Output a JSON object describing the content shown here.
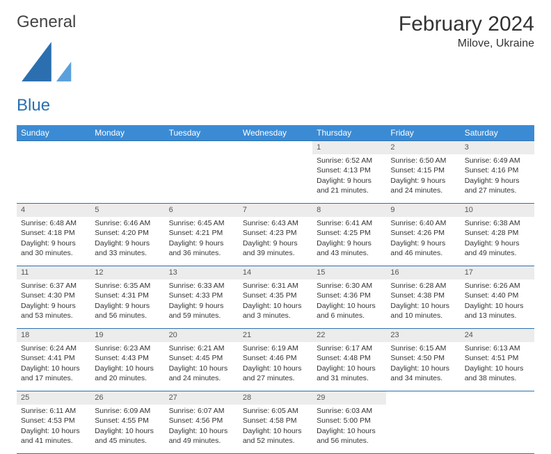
{
  "brand": {
    "part1": "General",
    "part2": "Blue"
  },
  "title": "February 2024",
  "location": "Milove, Ukraine",
  "colors": {
    "header_bg": "#3b8bd4",
    "border": "#2b6fb0",
    "daynum_bg": "#ececec",
    "text": "#333333"
  },
  "weekdays": [
    "Sunday",
    "Monday",
    "Tuesday",
    "Wednesday",
    "Thursday",
    "Friday",
    "Saturday"
  ],
  "weeks": [
    [
      null,
      null,
      null,
      null,
      {
        "n": "1",
        "sr": "Sunrise: 6:52 AM",
        "ss": "Sunset: 4:13 PM",
        "dl1": "Daylight: 9 hours",
        "dl2": "and 21 minutes."
      },
      {
        "n": "2",
        "sr": "Sunrise: 6:50 AM",
        "ss": "Sunset: 4:15 PM",
        "dl1": "Daylight: 9 hours",
        "dl2": "and 24 minutes."
      },
      {
        "n": "3",
        "sr": "Sunrise: 6:49 AM",
        "ss": "Sunset: 4:16 PM",
        "dl1": "Daylight: 9 hours",
        "dl2": "and 27 minutes."
      }
    ],
    [
      {
        "n": "4",
        "sr": "Sunrise: 6:48 AM",
        "ss": "Sunset: 4:18 PM",
        "dl1": "Daylight: 9 hours",
        "dl2": "and 30 minutes."
      },
      {
        "n": "5",
        "sr": "Sunrise: 6:46 AM",
        "ss": "Sunset: 4:20 PM",
        "dl1": "Daylight: 9 hours",
        "dl2": "and 33 minutes."
      },
      {
        "n": "6",
        "sr": "Sunrise: 6:45 AM",
        "ss": "Sunset: 4:21 PM",
        "dl1": "Daylight: 9 hours",
        "dl2": "and 36 minutes."
      },
      {
        "n": "7",
        "sr": "Sunrise: 6:43 AM",
        "ss": "Sunset: 4:23 PM",
        "dl1": "Daylight: 9 hours",
        "dl2": "and 39 minutes."
      },
      {
        "n": "8",
        "sr": "Sunrise: 6:41 AM",
        "ss": "Sunset: 4:25 PM",
        "dl1": "Daylight: 9 hours",
        "dl2": "and 43 minutes."
      },
      {
        "n": "9",
        "sr": "Sunrise: 6:40 AM",
        "ss": "Sunset: 4:26 PM",
        "dl1": "Daylight: 9 hours",
        "dl2": "and 46 minutes."
      },
      {
        "n": "10",
        "sr": "Sunrise: 6:38 AM",
        "ss": "Sunset: 4:28 PM",
        "dl1": "Daylight: 9 hours",
        "dl2": "and 49 minutes."
      }
    ],
    [
      {
        "n": "11",
        "sr": "Sunrise: 6:37 AM",
        "ss": "Sunset: 4:30 PM",
        "dl1": "Daylight: 9 hours",
        "dl2": "and 53 minutes."
      },
      {
        "n": "12",
        "sr": "Sunrise: 6:35 AM",
        "ss": "Sunset: 4:31 PM",
        "dl1": "Daylight: 9 hours",
        "dl2": "and 56 minutes."
      },
      {
        "n": "13",
        "sr": "Sunrise: 6:33 AM",
        "ss": "Sunset: 4:33 PM",
        "dl1": "Daylight: 9 hours",
        "dl2": "and 59 minutes."
      },
      {
        "n": "14",
        "sr": "Sunrise: 6:31 AM",
        "ss": "Sunset: 4:35 PM",
        "dl1": "Daylight: 10 hours",
        "dl2": "and 3 minutes."
      },
      {
        "n": "15",
        "sr": "Sunrise: 6:30 AM",
        "ss": "Sunset: 4:36 PM",
        "dl1": "Daylight: 10 hours",
        "dl2": "and 6 minutes."
      },
      {
        "n": "16",
        "sr": "Sunrise: 6:28 AM",
        "ss": "Sunset: 4:38 PM",
        "dl1": "Daylight: 10 hours",
        "dl2": "and 10 minutes."
      },
      {
        "n": "17",
        "sr": "Sunrise: 6:26 AM",
        "ss": "Sunset: 4:40 PM",
        "dl1": "Daylight: 10 hours",
        "dl2": "and 13 minutes."
      }
    ],
    [
      {
        "n": "18",
        "sr": "Sunrise: 6:24 AM",
        "ss": "Sunset: 4:41 PM",
        "dl1": "Daylight: 10 hours",
        "dl2": "and 17 minutes."
      },
      {
        "n": "19",
        "sr": "Sunrise: 6:23 AM",
        "ss": "Sunset: 4:43 PM",
        "dl1": "Daylight: 10 hours",
        "dl2": "and 20 minutes."
      },
      {
        "n": "20",
        "sr": "Sunrise: 6:21 AM",
        "ss": "Sunset: 4:45 PM",
        "dl1": "Daylight: 10 hours",
        "dl2": "and 24 minutes."
      },
      {
        "n": "21",
        "sr": "Sunrise: 6:19 AM",
        "ss": "Sunset: 4:46 PM",
        "dl1": "Daylight: 10 hours",
        "dl2": "and 27 minutes."
      },
      {
        "n": "22",
        "sr": "Sunrise: 6:17 AM",
        "ss": "Sunset: 4:48 PM",
        "dl1": "Daylight: 10 hours",
        "dl2": "and 31 minutes."
      },
      {
        "n": "23",
        "sr": "Sunrise: 6:15 AM",
        "ss": "Sunset: 4:50 PM",
        "dl1": "Daylight: 10 hours",
        "dl2": "and 34 minutes."
      },
      {
        "n": "24",
        "sr": "Sunrise: 6:13 AM",
        "ss": "Sunset: 4:51 PM",
        "dl1": "Daylight: 10 hours",
        "dl2": "and 38 minutes."
      }
    ],
    [
      {
        "n": "25",
        "sr": "Sunrise: 6:11 AM",
        "ss": "Sunset: 4:53 PM",
        "dl1": "Daylight: 10 hours",
        "dl2": "and 41 minutes."
      },
      {
        "n": "26",
        "sr": "Sunrise: 6:09 AM",
        "ss": "Sunset: 4:55 PM",
        "dl1": "Daylight: 10 hours",
        "dl2": "and 45 minutes."
      },
      {
        "n": "27",
        "sr": "Sunrise: 6:07 AM",
        "ss": "Sunset: 4:56 PM",
        "dl1": "Daylight: 10 hours",
        "dl2": "and 49 minutes."
      },
      {
        "n": "28",
        "sr": "Sunrise: 6:05 AM",
        "ss": "Sunset: 4:58 PM",
        "dl1": "Daylight: 10 hours",
        "dl2": "and 52 minutes."
      },
      {
        "n": "29",
        "sr": "Sunrise: 6:03 AM",
        "ss": "Sunset: 5:00 PM",
        "dl1": "Daylight: 10 hours",
        "dl2": "and 56 minutes."
      },
      null,
      null
    ]
  ]
}
